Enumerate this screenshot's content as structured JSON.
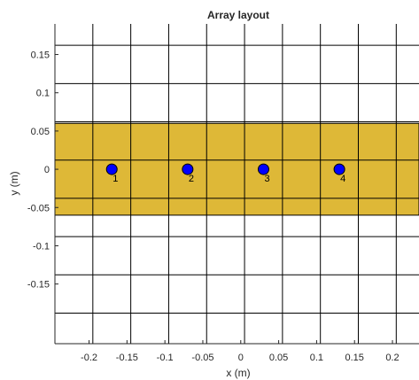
{
  "chart_data": {
    "type": "scatter",
    "title": "Array layout",
    "xlabel": "x (m)",
    "ylabel": "y (m)",
    "xlim": [
      -0.245,
      0.235
    ],
    "ylim": [
      -0.228,
      0.19
    ],
    "xticks": [
      -0.2,
      -0.15,
      -0.1,
      -0.05,
      0,
      0.05,
      0.1,
      0.15,
      0.2
    ],
    "xtick_labels": [
      "-0.2",
      "-0.15",
      "-0.1",
      "-0.05",
      "0",
      "0.05",
      "0.1",
      "0.15",
      "0.2"
    ],
    "yticks": [
      -0.15,
      -0.1,
      -0.05,
      0,
      0.05,
      0.1,
      0.15
    ],
    "ytick_labels": [
      "-0.15",
      "-0.1",
      "-0.05",
      "0",
      "0.05",
      "0.1",
      "0.15"
    ],
    "grid": true,
    "substrate": {
      "x": [
        -0.245,
        0.235
      ],
      "y": [
        -0.06,
        0.06
      ],
      "color": "#DEB837"
    },
    "elements": [
      {
        "label": "1",
        "x": -0.17,
        "y": 0
      },
      {
        "label": "2",
        "x": -0.07,
        "y": 0
      },
      {
        "label": "3",
        "x": 0.03,
        "y": 0
      },
      {
        "label": "4",
        "x": 0.13,
        "y": 0
      }
    ],
    "marker_color": "#0000FF",
    "grid_x": [
      -0.195,
      -0.145,
      -0.095,
      -0.045,
      0.005,
      0.055,
      0.105,
      0.155,
      0.205
    ],
    "grid_y": [
      -0.188,
      -0.138,
      -0.088,
      -0.038,
      0.012,
      0.062,
      0.112,
      0.162
    ]
  }
}
